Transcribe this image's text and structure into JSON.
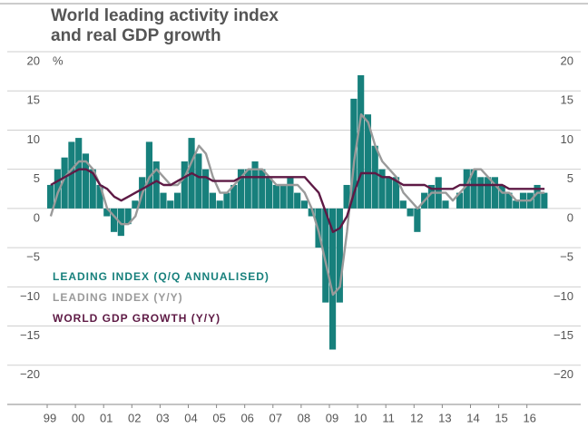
{
  "chart_data": {
    "type": "bar-line",
    "title": [
      "World leading activity index",
      "and real GDP growth"
    ],
    "unit": "%",
    "x": [
      1999,
      1999.25,
      1999.5,
      1999.75,
      2000,
      2000.25,
      2000.5,
      2000.75,
      2001,
      2001.25,
      2001.5,
      2001.75,
      2002,
      2002.25,
      2002.5,
      2002.75,
      2003,
      2003.25,
      2003.5,
      2003.75,
      2004,
      2004.25,
      2004.5,
      2004.75,
      2005,
      2005.25,
      2005.5,
      2005.75,
      2006,
      2006.25,
      2006.5,
      2006.75,
      2007,
      2007.25,
      2007.5,
      2007.75,
      2008,
      2008.25,
      2008.5,
      2008.75,
      2009,
      2009.25,
      2009.5,
      2009.75,
      2010,
      2010.25,
      2010.5,
      2010.75,
      2011,
      2011.25,
      2011.5,
      2011.75,
      2012,
      2012.25,
      2012.5,
      2012.75,
      2013,
      2013.25,
      2013.5,
      2013.75,
      2014,
      2014.25,
      2014.5,
      2014.75,
      2015,
      2015.25,
      2015.5,
      2015.75,
      2016,
      2016.25,
      2016.5
    ],
    "series": [
      {
        "name": "LEADING INDEX (Q/Q ANNUALISED)",
        "kind": "bar",
        "color": "#17807c",
        "values": [
          3,
          5,
          6.5,
          8.5,
          9,
          7,
          5,
          3,
          -1,
          -3,
          -3.5,
          -2,
          1,
          4,
          8.5,
          6,
          2,
          1,
          2,
          6,
          9,
          7,
          5,
          2,
          1,
          2,
          3,
          5,
          5,
          6,
          5,
          4,
          3,
          3,
          4,
          2,
          1,
          -1,
          -5,
          -12,
          -18,
          -12,
          3,
          14,
          17,
          12,
          8,
          5,
          4,
          4,
          1,
          -1,
          -3,
          2,
          3,
          4,
          1,
          0,
          2,
          5,
          5,
          4,
          4,
          4,
          3,
          2,
          1,
          2,
          2,
          3,
          2
        ]
      },
      {
        "name": "LEADING INDEX (Y/Y)",
        "kind": "line",
        "color": "#9a9a9a",
        "values": [
          -1,
          2,
          4,
          5,
          6,
          6,
          5,
          3,
          0,
          -1,
          -2,
          -2,
          -1,
          2,
          4,
          5,
          4,
          3,
          3,
          4,
          6,
          8,
          7,
          4,
          2,
          2,
          3,
          4,
          5,
          5,
          5,
          4,
          3,
          3,
          3,
          3,
          2,
          0,
          -3,
          -7,
          -11,
          -10,
          -3,
          6,
          12,
          11,
          8,
          6,
          5,
          4,
          2,
          1,
          0,
          1,
          2,
          2,
          2,
          1,
          2,
          3,
          5,
          5,
          4,
          3,
          2,
          2,
          1,
          1,
          1,
          2,
          2
        ]
      },
      {
        "name": "WORLD GDP GROWTH (Y/Y)",
        "kind": "line",
        "color": "#5e1a45",
        "values": [
          3,
          3.5,
          4,
          4.5,
          5,
          5,
          4.5,
          3,
          2.5,
          1.5,
          1,
          1.5,
          2,
          2.5,
          3,
          3.5,
          3,
          3,
          3.5,
          4,
          4.5,
          4,
          4,
          3.5,
          3.5,
          3.5,
          3.5,
          4,
          4,
          4,
          4,
          4,
          4,
          4,
          4,
          4,
          4,
          3,
          2,
          -0.5,
          -3,
          -2.5,
          -1,
          2,
          4.5,
          4.5,
          4.5,
          4,
          4,
          3.5,
          3,
          3,
          3,
          3,
          2.5,
          2.5,
          2.5,
          2.5,
          3,
          3,
          3,
          3,
          3,
          3,
          3,
          2.5,
          2.5,
          2.5,
          2.5,
          2.5,
          2.5
        ]
      }
    ],
    "xlim": [
      1999,
      2016.75
    ],
    "xticks": [
      {
        "value": 1999,
        "label": "99"
      },
      {
        "value": 2000,
        "label": "00"
      },
      {
        "value": 2001,
        "label": "01"
      },
      {
        "value": 2002,
        "label": "02"
      },
      {
        "value": 2003,
        "label": "03"
      },
      {
        "value": 2004,
        "label": "04"
      },
      {
        "value": 2005,
        "label": "05"
      },
      {
        "value": 2006,
        "label": "06"
      },
      {
        "value": 2007,
        "label": "07"
      },
      {
        "value": 2008,
        "label": "08"
      },
      {
        "value": 2009,
        "label": "09"
      },
      {
        "value": 2010,
        "label": "10"
      },
      {
        "value": 2011,
        "label": "11"
      },
      {
        "value": 2012,
        "label": "12"
      },
      {
        "value": 2013,
        "label": "13"
      },
      {
        "value": 2014,
        "label": "14"
      },
      {
        "value": 2015,
        "label": "15"
      },
      {
        "value": 2016,
        "label": "16"
      }
    ],
    "ylim": [
      -25,
      20
    ],
    "yticks": [
      20,
      15,
      10,
      5,
      0,
      {
        "value": -5,
        "label": "−5"
      },
      {
        "value": -10,
        "label": "−10"
      },
      {
        "value": -15,
        "label": "−15"
      },
      {
        "value": -20,
        "label": "−20"
      }
    ],
    "grid": true
  }
}
